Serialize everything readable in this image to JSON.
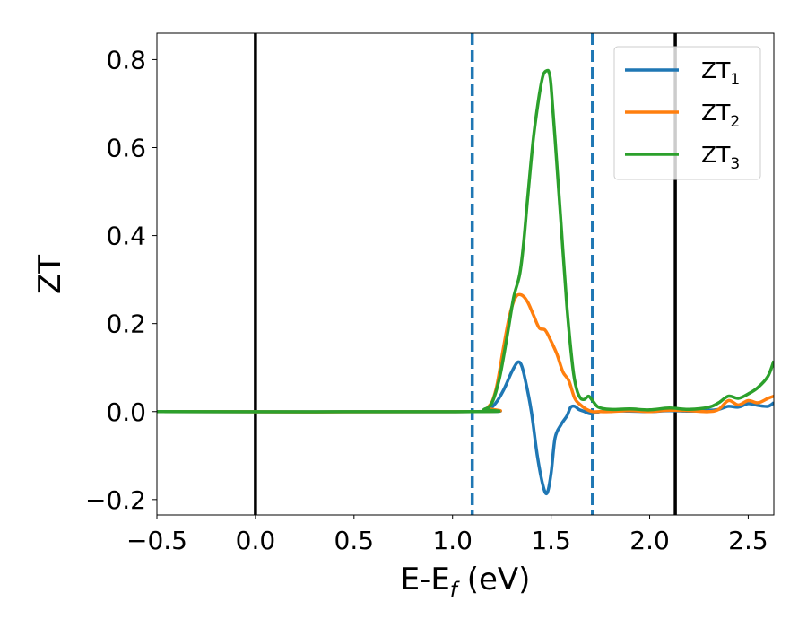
{
  "chart_data": {
    "type": "line",
    "xlabel": "E-E",
    "xlabel_sub": "f",
    "xlabel_unit": " (eV)",
    "ylabel": "ZT",
    "xlim": [
      -0.5,
      2.63
    ],
    "ylim": [
      -0.235,
      0.86
    ],
    "xticks": [
      -0.5,
      0.0,
      0.5,
      1.0,
      1.5,
      2.0,
      2.5
    ],
    "xtick_labels": [
      "−0.5",
      "0.0",
      "0.5",
      "1.0",
      "1.5",
      "2.0",
      "2.5"
    ],
    "yticks": [
      -0.2,
      0.0,
      0.2,
      0.4,
      0.6,
      0.8
    ],
    "ytick_labels": [
      "−0.2",
      "0.0",
      "0.2",
      "0.4",
      "0.6",
      "0.8"
    ],
    "grid": false,
    "legend_position": "top-right",
    "vlines": [
      {
        "x": 0.0,
        "color": "#000000",
        "style": "solid"
      },
      {
        "x": 2.13,
        "color": "#000000",
        "style": "solid"
      },
      {
        "x": 1.1,
        "color": "#1f77b4",
        "style": "dashed"
      },
      {
        "x": 1.71,
        "color": "#1f77b4",
        "style": "dashed"
      }
    ],
    "series": [
      {
        "name": "ZT",
        "name_sub": "1",
        "color": "#1f77b4",
        "x": [
          -0.5,
          1.1,
          1.18,
          1.22,
          1.26,
          1.3,
          1.33,
          1.35,
          1.37,
          1.4,
          1.43,
          1.46,
          1.48,
          1.5,
          1.52,
          1.55,
          1.58,
          1.6,
          1.62,
          1.64,
          1.67,
          1.7,
          1.75,
          1.8,
          1.9,
          2.0,
          2.1,
          2.2,
          2.3,
          2.35,
          2.4,
          2.45,
          2.5,
          2.55,
          2.6,
          2.63
        ],
        "y": [
          0.0,
          0.0,
          0.005,
          0.02,
          0.05,
          0.09,
          0.112,
          0.105,
          0.07,
          0.0,
          -0.1,
          -0.17,
          -0.185,
          -0.14,
          -0.06,
          -0.03,
          -0.01,
          0.01,
          0.012,
          0.005,
          0.0,
          -0.005,
          0.0,
          0.002,
          0.001,
          0.0,
          0.002,
          0.001,
          0.003,
          0.005,
          0.012,
          0.01,
          0.018,
          0.014,
          0.012,
          0.02
        ]
      },
      {
        "name": "ZT",
        "name_sub": "2",
        "color": "#ff7f0e",
        "x": [
          -0.5,
          1.1,
          1.18,
          1.22,
          1.26,
          1.29,
          1.32,
          1.35,
          1.38,
          1.41,
          1.44,
          1.47,
          1.5,
          1.53,
          1.56,
          1.59,
          1.62,
          1.65,
          1.68,
          1.71,
          1.75,
          1.8,
          1.9,
          2.0,
          2.1,
          2.2,
          2.3,
          2.35,
          2.4,
          2.45,
          2.5,
          2.55,
          2.6,
          2.63
        ],
        "y": [
          0.0,
          0.0,
          0.01,
          0.05,
          0.15,
          0.22,
          0.26,
          0.265,
          0.25,
          0.22,
          0.19,
          0.185,
          0.16,
          0.13,
          0.09,
          0.07,
          0.03,
          0.015,
          0.005,
          0.0,
          0.0,
          0.0,
          0.002,
          0.0,
          0.003,
          0.002,
          0.0,
          0.005,
          0.025,
          0.015,
          0.025,
          0.02,
          0.03,
          0.035
        ]
      },
      {
        "name": "ZT",
        "name_sub": "3",
        "color": "#2ca02c",
        "x": [
          -0.5,
          1.1,
          1.16,
          1.2,
          1.24,
          1.28,
          1.31,
          1.34,
          1.36,
          1.38,
          1.41,
          1.44,
          1.46,
          1.48,
          1.49,
          1.5,
          1.52,
          1.55,
          1.58,
          1.61,
          1.63,
          1.65,
          1.67,
          1.69,
          1.71,
          1.74,
          1.8,
          1.9,
          2.0,
          2.1,
          2.2,
          2.3,
          2.35,
          2.4,
          2.45,
          2.5,
          2.55,
          2.6,
          2.63
        ],
        "y": [
          0.0,
          0.0,
          0.005,
          0.02,
          0.08,
          0.18,
          0.26,
          0.31,
          0.38,
          0.48,
          0.62,
          0.72,
          0.765,
          0.775,
          0.77,
          0.74,
          0.62,
          0.43,
          0.24,
          0.1,
          0.05,
          0.03,
          0.028,
          0.035,
          0.025,
          0.01,
          0.005,
          0.006,
          0.004,
          0.008,
          0.005,
          0.01,
          0.02,
          0.035,
          0.03,
          0.04,
          0.055,
          0.08,
          0.115
        ]
      }
    ]
  }
}
